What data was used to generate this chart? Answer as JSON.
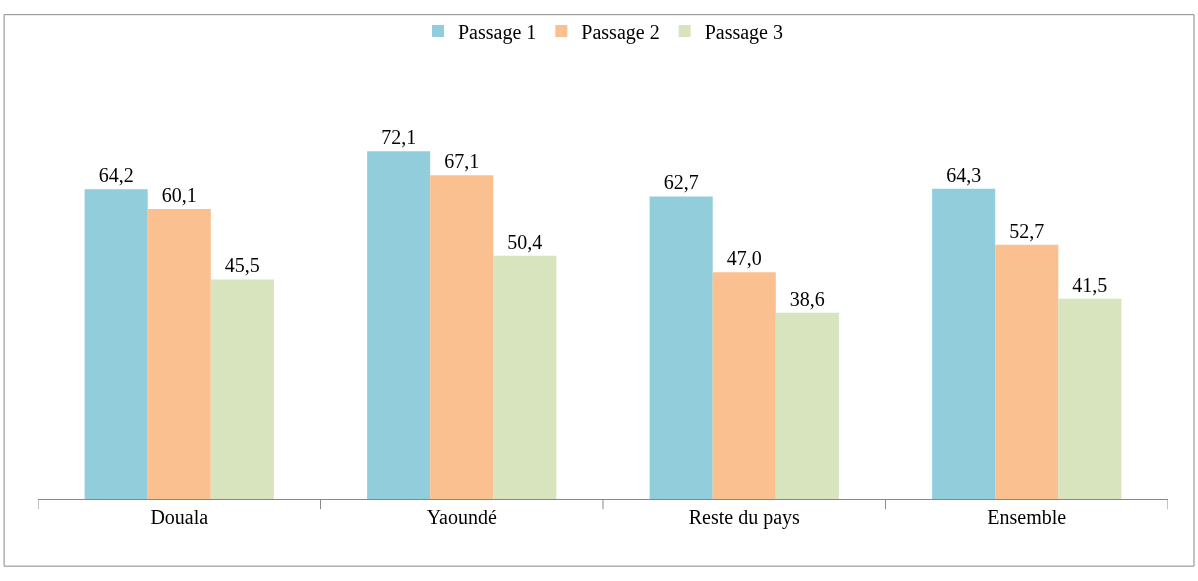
{
  "chart_data": {
    "type": "bar",
    "categories": [
      "Douala",
      "Yaoundé",
      "Reste du pays",
      "Ensemble"
    ],
    "series": [
      {
        "name": "Passage 1",
        "color": "#92cddc",
        "values": [
          64.2,
          72.1,
          62.7,
          64.3
        ],
        "value_labels": [
          "64,2",
          "72,1",
          "62,7",
          "64,3"
        ]
      },
      {
        "name": "Passage 2",
        "color": "#fac090",
        "values": [
          60.1,
          67.1,
          47.0,
          52.7
        ],
        "value_labels": [
          "60,1",
          "67,1",
          "47,0",
          "52,7"
        ]
      },
      {
        "name": "Passage 3",
        "color": "#d7e4bd",
        "values": [
          45.5,
          50.4,
          38.6,
          41.5
        ],
        "value_labels": [
          "45,5",
          "50,4",
          "38,6",
          "41,5"
        ]
      }
    ],
    "legend": "top",
    "tick_labels": "x"
  }
}
